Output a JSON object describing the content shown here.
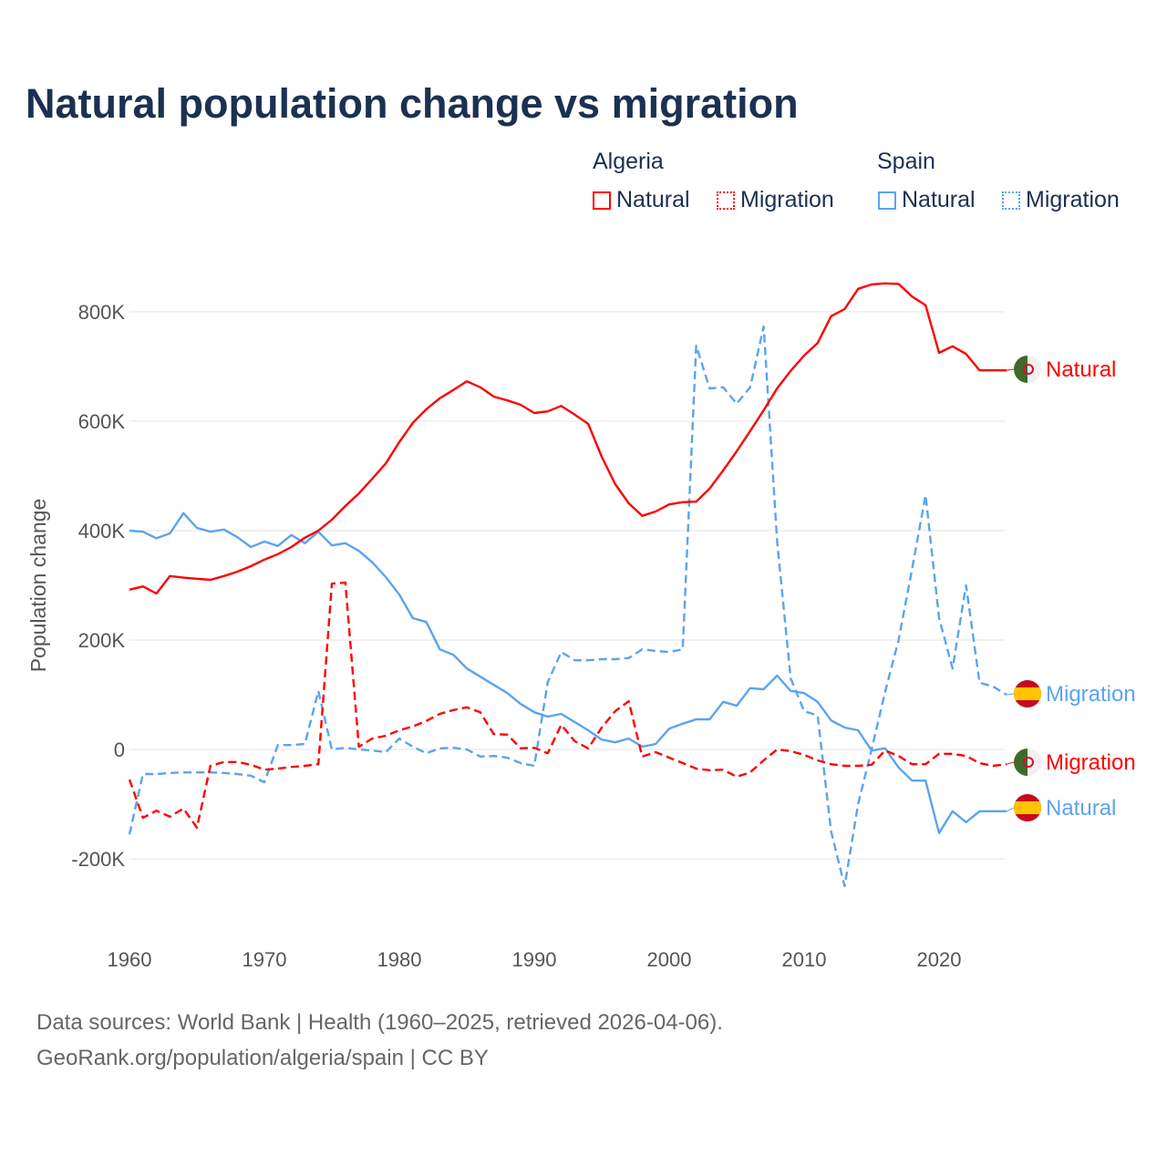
{
  "title": "Natural population change vs migration",
  "legend": {
    "groups": [
      {
        "name": "Algeria",
        "items": [
          "Natural",
          "Migration"
        ]
      },
      {
        "name": "Spain",
        "items": [
          "Natural",
          "Migration"
        ]
      }
    ]
  },
  "colors": {
    "algeria": "#ff0000",
    "spain": "#5ba4ee",
    "title": "#1b3152"
  },
  "footer": {
    "line1": "Data sources: World Bank | Health (1960–2025, retrieved 2026-04-06).",
    "line2": "GeoRank.org/population/algeria/spain | CC BY"
  },
  "chart_data": {
    "type": "line",
    "title": "Natural population change vs migration",
    "xlabel": "",
    "ylabel": "Population change",
    "xlim": [
      1960,
      2025
    ],
    "ylim": [
      -200000,
      800000
    ],
    "x_ticks": [
      "1960",
      "1970",
      "1980",
      "1990",
      "2000",
      "2010",
      "2020"
    ],
    "y_ticks": [
      {
        "v": -200000,
        "label": "-200K"
      },
      {
        "v": 0,
        "label": "0"
      },
      {
        "v": 200000,
        "label": "200K"
      },
      {
        "v": 400000,
        "label": "400K"
      },
      {
        "v": 600000,
        "label": "600K"
      },
      {
        "v": 800000,
        "label": "800K"
      }
    ],
    "grid": true,
    "x_start": 1960,
    "units": "thousands",
    "series": [
      {
        "name": "Algeria Natural",
        "country": "Algeria",
        "kind": "Natural",
        "color": "#ff0000",
        "dashed": false,
        "end_label": "Natural",
        "values": [
          292,
          298,
          285,
          317,
          314,
          312,
          310,
          317,
          325,
          335,
          347,
          357,
          370,
          387,
          400,
          420,
          445,
          468,
          495,
          523,
          562,
          597,
          622,
          642,
          657,
          673,
          662,
          645,
          638,
          630,
          615,
          618,
          628,
          612,
          595,
          535,
          485,
          450,
          427,
          435,
          448,
          452,
          453,
          477,
          510,
          545,
          582,
          620,
          660,
          692,
          720,
          743,
          792,
          805,
          842,
          850,
          852,
          851,
          828,
          812,
          725,
          737,
          723,
          693,
          693,
          693
        ]
      },
      {
        "name": "Algeria Migration",
        "country": "Algeria",
        "kind": "Migration",
        "color": "#ff0000",
        "dashed": true,
        "end_label": "Migration",
        "values": [
          -55,
          -125,
          -112,
          -123,
          -108,
          -143,
          -30,
          -23,
          -23,
          -28,
          -37,
          -35,
          -32,
          -30,
          -27,
          303,
          305,
          5,
          20,
          25,
          35,
          42,
          52,
          65,
          72,
          77,
          68,
          28,
          27,
          2,
          3,
          -7,
          45,
          15,
          2,
          40,
          70,
          88,
          -13,
          -5,
          -15,
          -25,
          -35,
          -38,
          -37,
          -50,
          -42,
          -20,
          0,
          -3,
          -10,
          -20,
          -27,
          -30,
          -30,
          -28,
          -2,
          -12,
          -27,
          -27,
          -8,
          -8,
          -12,
          -25,
          -30,
          -27
        ]
      },
      {
        "name": "Spain Natural",
        "country": "Spain",
        "kind": "Natural",
        "color": "#5ba4ee",
        "dashed": false,
        "end_label": "Natural",
        "values": [
          400,
          398,
          386,
          395,
          432,
          405,
          398,
          402,
          388,
          370,
          380,
          372,
          392,
          377,
          398,
          373,
          377,
          363,
          342,
          315,
          283,
          240,
          233,
          183,
          173,
          148,
          133,
          118,
          103,
          83,
          68,
          60,
          65,
          50,
          35,
          18,
          13,
          20,
          5,
          10,
          38,
          47,
          55,
          55,
          87,
          80,
          112,
          110,
          135,
          107,
          103,
          87,
          53,
          40,
          35,
          -2,
          2,
          -33,
          -57,
          -57,
          -153,
          -113,
          -133,
          -113,
          -113,
          -113
        ]
      },
      {
        "name": "Spain Migration",
        "country": "Spain",
        "kind": "Migration",
        "color": "#5ba4ee",
        "dashed": true,
        "end_label": "Migration",
        "values": [
          -155,
          -45,
          -45,
          -43,
          -42,
          -42,
          -42,
          -43,
          -45,
          -48,
          -60,
          8,
          8,
          10,
          107,
          0,
          3,
          0,
          -2,
          -5,
          20,
          5,
          -7,
          2,
          3,
          0,
          -13,
          -12,
          -15,
          -25,
          -30,
          123,
          178,
          163,
          163,
          165,
          165,
          167,
          183,
          180,
          178,
          183,
          738,
          660,
          662,
          632,
          662,
          773,
          380,
          130,
          70,
          62,
          -150,
          -250,
          -100,
          0,
          105,
          200,
          330,
          465,
          240,
          148,
          300,
          122,
          115,
          100
        ]
      }
    ]
  }
}
